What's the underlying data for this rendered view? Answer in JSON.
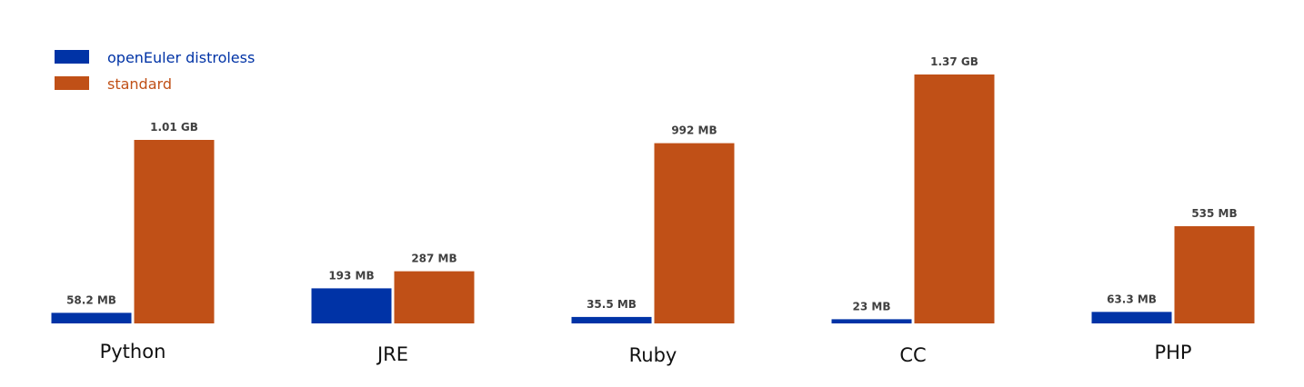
{
  "chart_data": {
    "type": "bar",
    "title": "",
    "xlabel": "",
    "ylabel": "",
    "unit": "MB",
    "grid": false,
    "legend_position": "top-left",
    "categories": [
      "Python",
      "JRE",
      "Ruby",
      "CC",
      "PHP"
    ],
    "series": [
      {
        "name": "openEuler distroless",
        "color": "#0033a6",
        "values": [
          58.2,
          193,
          35.5,
          23,
          63.3
        ],
        "labels": [
          "58.2 MB",
          "193 MB",
          "35.5 MB",
          "23 MB",
          "63.3 MB"
        ]
      },
      {
        "name": "standard",
        "color": "#c05017",
        "values": [
          1010,
          287,
          992,
          1370,
          535
        ],
        "labels": [
          "1.01 GB",
          "287 MB",
          "992 MB",
          "1.37 GB",
          "535 MB"
        ]
      }
    ]
  }
}
